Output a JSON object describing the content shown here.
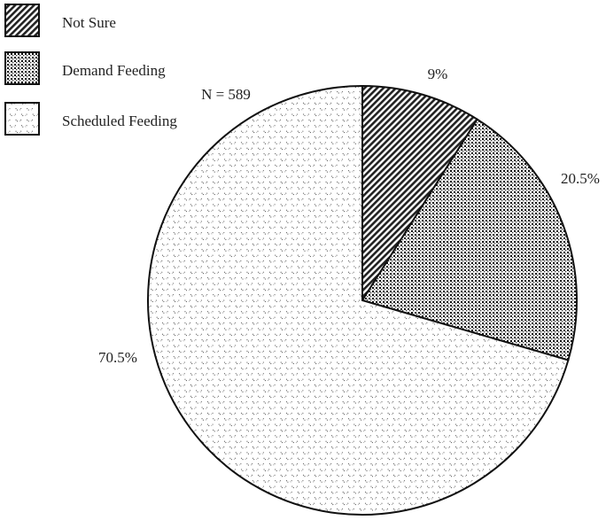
{
  "chart_data": {
    "type": "pie",
    "annotation": "N = 589",
    "categories": [
      "Not Sure",
      "Demand Feeding",
      "Scheduled Feeding"
    ],
    "values": [
      9,
      20.5,
      70.5
    ],
    "value_labels": [
      "9%",
      "20.5%",
      "70.5%"
    ]
  }
}
